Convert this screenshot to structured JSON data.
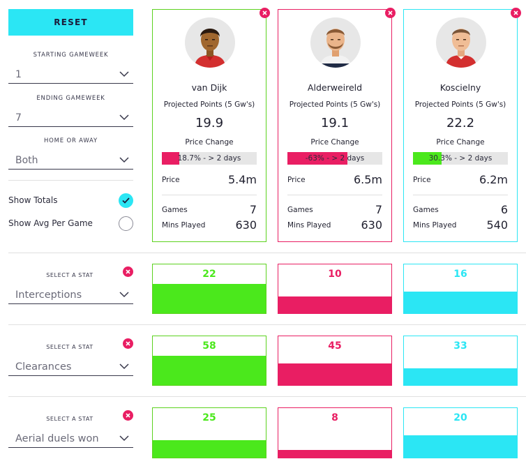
{
  "sidebar": {
    "reset_label": "RESET",
    "starting_gw": {
      "label": "STARTING GAMEWEEK",
      "value": "1"
    },
    "ending_gw": {
      "label": "ENDING GAMEWEEK",
      "value": "7"
    },
    "home_away": {
      "label": "HOME OR AWAY",
      "value": "Both"
    },
    "show_totals": {
      "label": "Show Totals",
      "checked": true
    },
    "show_avg": {
      "label": "Show Avg Per Game",
      "checked": false
    }
  },
  "stat_rows": [
    {
      "label": "SELECT A STAT",
      "stat": "Interceptions",
      "values": [
        "22",
        "10",
        "16"
      ],
      "fill": [
        0.6,
        0.35,
        0.45
      ]
    },
    {
      "label": "SELECT A STAT",
      "stat": "Clearances",
      "values": [
        "58",
        "45",
        "33"
      ],
      "fill": [
        0.6,
        0.45,
        0.35
      ]
    },
    {
      "label": "SELECT A STAT",
      "stat": "Aerial duels won",
      "values": [
        "25",
        "8",
        "20"
      ],
      "fill": [
        0.35,
        0.15,
        0.45
      ]
    }
  ],
  "players": [
    {
      "name": "van Dijk",
      "color": "#5cd21e",
      "fill_color": "#4be81c",
      "projected_label": "Projected Points (5 Gw's)",
      "projected": "19.9",
      "price_change_label": "Price Change",
      "price_change_text": "18.7% - > 2 days",
      "price_change_fill": 0.187,
      "price_change_color": "#e91e63",
      "price_label": "Price",
      "price": "5.4m",
      "games_label": "Games",
      "games": "7",
      "mins_label": "Mins Played",
      "mins": "630"
    },
    {
      "name": "Alderweireld",
      "color": "#e91e63",
      "fill_color": "#e91e63",
      "projected_label": "Projected Points (5 Gw's)",
      "projected": "19.1",
      "price_change_label": "Price Change",
      "price_change_text": "-63% - > 2 days",
      "price_change_fill": 0.63,
      "price_change_color": "#e91e63",
      "price_label": "Price",
      "price": "6.5m",
      "games_label": "Games",
      "games": "7",
      "mins_label": "Mins Played",
      "mins": "630"
    },
    {
      "name": "Koscielny",
      "color": "#2be6f4",
      "fill_color": "#2be6f4",
      "projected_label": "Projected Points (5 Gw's)",
      "projected": "22.2",
      "price_change_label": "Price Change",
      "price_change_text": "30.3% - > 2 days",
      "price_change_fill": 0.303,
      "price_change_color": "#4be81c",
      "price_label": "Price",
      "price": "6.2m",
      "games_label": "Games",
      "games": "6",
      "mins_label": "Mins Played",
      "mins": "540"
    }
  ],
  "icons": {
    "chevron": "chevron-down-icon",
    "remove": "close-icon",
    "check": "check-icon"
  }
}
